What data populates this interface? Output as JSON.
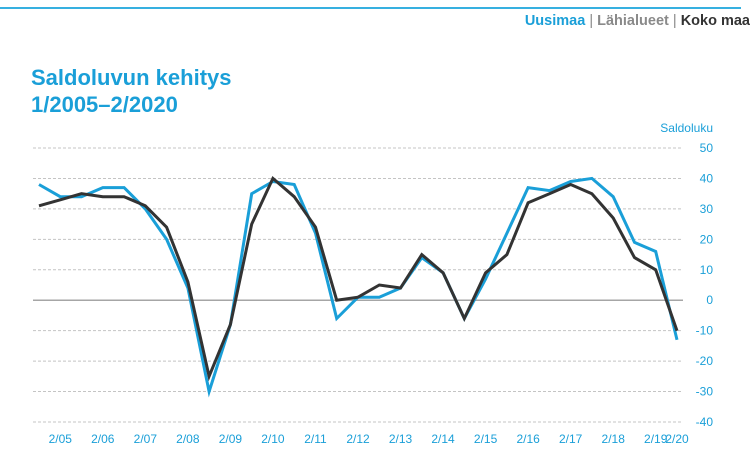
{
  "header": {
    "nav": [
      {
        "label": "Uusimaa",
        "color": "#1a9fd8"
      },
      {
        "label": "Lähialueet",
        "color": "#8a8a8a"
      },
      {
        "label": "Koko maa",
        "color": "#333333"
      }
    ],
    "separator": "|"
  },
  "chart_data": {
    "type": "line",
    "title": "Saldoluvun kehitys",
    "subtitle": "1/2005–2/2020",
    "ylabel": "Saldoluku",
    "xlabel": "",
    "ylim": [
      -40,
      50
    ],
    "yticks": [
      50,
      40,
      30,
      20,
      10,
      0,
      -10,
      -20,
      -30,
      -40
    ],
    "grid": true,
    "x": [
      "1/05",
      "2/05",
      "1/06",
      "2/06",
      "1/07",
      "2/07",
      "1/08",
      "2/08",
      "1/09",
      "2/09",
      "1/10",
      "2/10",
      "1/11",
      "2/11",
      "1/12",
      "2/12",
      "1/13",
      "2/13",
      "1/14",
      "2/14",
      "1/15",
      "2/15",
      "1/16",
      "2/16",
      "1/17",
      "2/17",
      "1/18",
      "2/18",
      "1/19",
      "2/19",
      "2/20"
    ],
    "xtick_labels": [
      "2/05",
      "2/06",
      "2/07",
      "2/08",
      "2/09",
      "2/10",
      "2/11",
      "2/12",
      "2/13",
      "2/14",
      "2/15",
      "2/16",
      "2/17",
      "2/18",
      "2/19",
      "2/20"
    ],
    "series": [
      {
        "name": "Uusimaa",
        "color": "#1a9fd8",
        "values": [
          38,
          34,
          34,
          37,
          37,
          30,
          20,
          4,
          -30,
          -8,
          35,
          39,
          38,
          22,
          -6,
          1,
          1,
          4,
          14,
          9,
          -6,
          7,
          22,
          37,
          36,
          39,
          40,
          34,
          19,
          16,
          -13
        ]
      },
      {
        "name": "Koko maa",
        "color": "#333333",
        "values": [
          31,
          33,
          35,
          34,
          34,
          31,
          24,
          6,
          -25,
          -8,
          25,
          40,
          34,
          24,
          0,
          1,
          5,
          4,
          15,
          9,
          -6,
          9,
          15,
          32,
          35,
          38,
          35,
          27,
          14,
          10,
          -10
        ]
      }
    ]
  }
}
